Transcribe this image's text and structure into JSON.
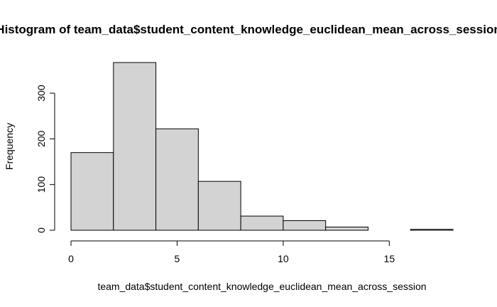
{
  "chart_data": {
    "type": "bar",
    "subtype": "histogram",
    "title": "Histogram of team_data$student_content_knowledge_euclidean_mean_across_session",
    "xlabel": "team_data$student_content_knowledge_euclidean_mean_across_session",
    "ylabel": "Frequency",
    "bins": [
      {
        "x0": 0,
        "x1": 2,
        "value": 170
      },
      {
        "x0": 2,
        "x1": 4,
        "value": 367
      },
      {
        "x0": 4,
        "x1": 6,
        "value": 222
      },
      {
        "x0": 6,
        "x1": 8,
        "value": 107
      },
      {
        "x0": 8,
        "x1": 10,
        "value": 31
      },
      {
        "x0": 10,
        "x1": 12,
        "value": 21
      },
      {
        "x0": 12,
        "x1": 14,
        "value": 7
      },
      {
        "x0": 14,
        "x1": 16,
        "value": 0
      },
      {
        "x0": 16,
        "x1": 18,
        "value": 2
      }
    ],
    "xlim": [
      0,
      18
    ],
    "ylim": [
      0,
      367
    ],
    "xticks": [
      0,
      5,
      10,
      15
    ],
    "yticks": [
      0,
      100,
      200,
      300
    ],
    "bar_fill": "#d3d3d3",
    "bar_stroke": "#000000",
    "grid": false,
    "legend": "none"
  }
}
